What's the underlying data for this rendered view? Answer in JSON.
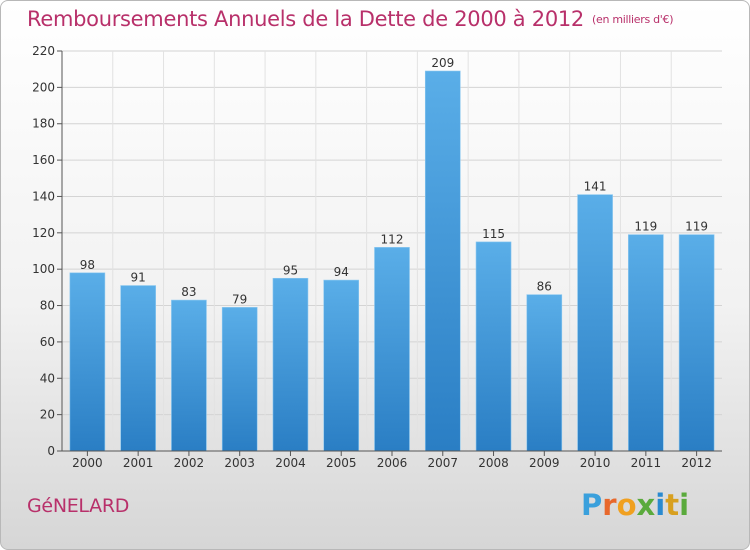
{
  "header": {
    "title": "Remboursements Annuels de la Dette de 2000 à 2012",
    "unit": "(en milliers d'€)"
  },
  "footer": {
    "commune": "GéNELARD",
    "logo": [
      "P",
      "r",
      "o",
      "x",
      "i",
      "t",
      "i"
    ]
  },
  "colors": {
    "title": "#b8306a",
    "bar_top": "#5aaee8",
    "bar_bottom": "#2a7ec4"
  },
  "chart_data": {
    "type": "bar",
    "title": "Remboursements Annuels de la Dette de 2000 à 2012",
    "xlabel": "",
    "ylabel": "",
    "categories": [
      "2000",
      "2001",
      "2002",
      "2003",
      "2004",
      "2005",
      "2006",
      "2007",
      "2008",
      "2009",
      "2010",
      "2011",
      "2012"
    ],
    "values": [
      98,
      91,
      83,
      79,
      95,
      94,
      112,
      209,
      115,
      86,
      141,
      119,
      119
    ],
    "ylim": [
      0,
      220
    ],
    "yticks": [
      0,
      20,
      40,
      60,
      80,
      100,
      120,
      140,
      160,
      180,
      200,
      220
    ],
    "grid": true,
    "legend": "none"
  }
}
